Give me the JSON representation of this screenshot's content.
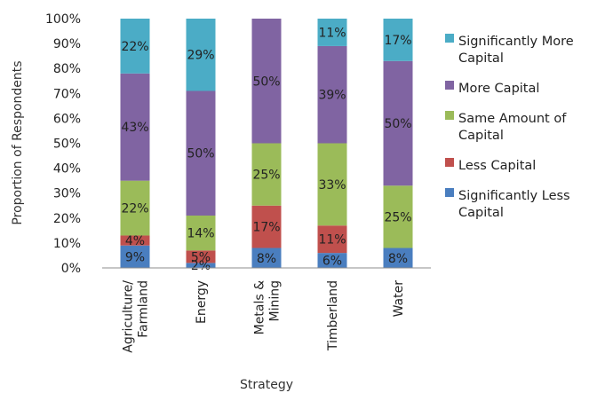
{
  "chart_data": {
    "type": "bar",
    "stacked": true,
    "percent": true,
    "title": "",
    "xlabel": "Strategy",
    "ylabel": "Proportion of Respondents",
    "ylim": [
      0,
      100
    ],
    "yticks": [
      "0%",
      "10%",
      "20%",
      "30%",
      "40%",
      "50%",
      "60%",
      "70%",
      "80%",
      "90%",
      "100%"
    ],
    "grid": false,
    "legend_position": "right",
    "categories": [
      [
        "Agriculture/",
        "Farmland"
      ],
      [
        "Energy"
      ],
      [
        "Metals &",
        "Mining"
      ],
      [
        "Timberland"
      ],
      [
        "Water"
      ]
    ],
    "series": [
      {
        "name": "Significantly Less Capital",
        "legend_lines": [
          "Significantly Less",
          "Capital"
        ],
        "color": "#4a7ebf",
        "values": [
          9,
          2,
          8,
          6,
          8
        ],
        "labels": [
          "9%",
          "2%",
          "8%",
          "6%",
          "8%"
        ]
      },
      {
        "name": "Less Capital",
        "legend_lines": [
          "Less Capital"
        ],
        "color": "#c0504d",
        "values": [
          4,
          5,
          17,
          11,
          0
        ],
        "labels": [
          "4%",
          "5%",
          "17%",
          "11%",
          ""
        ]
      },
      {
        "name": "Same Amount of Capital",
        "legend_lines": [
          "Same Amount of",
          "Capital"
        ],
        "color": "#9bbb59",
        "values": [
          22,
          14,
          25,
          33,
          25
        ],
        "labels": [
          "22%",
          "14%",
          "25%",
          "33%",
          "25%"
        ]
      },
      {
        "name": "More Capital",
        "legend_lines": [
          "More Capital"
        ],
        "color": "#8064a2",
        "values": [
          43,
          50,
          50,
          39,
          50
        ],
        "labels": [
          "43%",
          "50%",
          "50%",
          "39%",
          "50%"
        ]
      },
      {
        "name": "Significantly More Capital",
        "legend_lines": [
          "Significantly More",
          "Capital"
        ],
        "color": "#4bacc6",
        "values": [
          22,
          29,
          0,
          11,
          17
        ],
        "labels": [
          "22%",
          "29%",
          "",
          "11%",
          "17%"
        ]
      }
    ]
  }
}
